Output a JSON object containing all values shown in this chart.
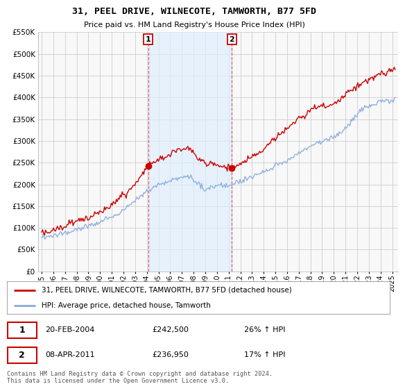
{
  "title": "31, PEEL DRIVE, WILNECOTE, TAMWORTH, B77 5FD",
  "subtitle": "Price paid vs. HM Land Registry's House Price Index (HPI)",
  "ylim": [
    0,
    550000
  ],
  "yticks": [
    0,
    50000,
    100000,
    150000,
    200000,
    250000,
    300000,
    350000,
    400000,
    450000,
    500000,
    550000
  ],
  "sale1_date_num": 2004.12,
  "sale1_price": 242500,
  "sale2_date_num": 2011.27,
  "sale2_price": 236950,
  "highlight_color": "#ddeeff",
  "highlight_alpha": 0.65,
  "red_line_color": "#cc0000",
  "blue_line_color": "#88aadd",
  "legend1": "31, PEEL DRIVE, WILNECOTE, TAMWORTH, B77 5FD (detached house)",
  "legend2": "HPI: Average price, detached house, Tamworth",
  "annotation1_date": "20-FEB-2004",
  "annotation1_price": "£242,500",
  "annotation1_hpi": "26% ↑ HPI",
  "annotation2_date": "08-APR-2011",
  "annotation2_price": "£236,950",
  "annotation2_hpi": "17% ↑ HPI",
  "footer": "Contains HM Land Registry data © Crown copyright and database right 2024.\nThis data is licensed under the Open Government Licence v3.0.",
  "bg_color": "#ffffff",
  "plot_bg_color": "#f8f8f8",
  "grid_color": "#cccccc"
}
